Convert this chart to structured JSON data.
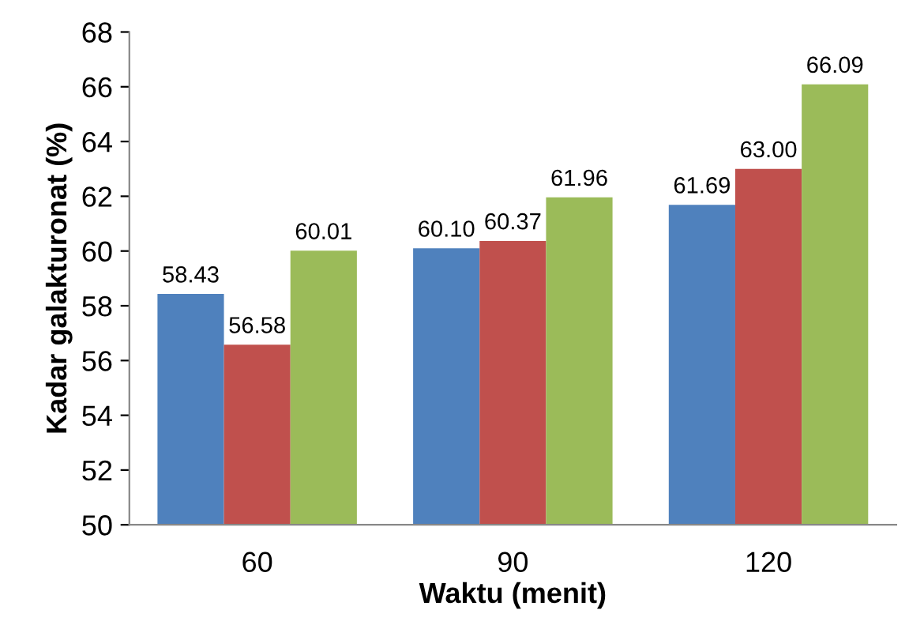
{
  "chart_data": {
    "type": "bar",
    "xlabel": "Waktu (menit)",
    "ylabel": "Kadar galakturonat (%)",
    "categories": [
      "60",
      "90",
      "120"
    ],
    "series": [
      {
        "color": "#4f81bd",
        "values": [
          58.43,
          60.1,
          61.69
        ],
        "value_labels": [
          "58.43",
          "60.10",
          "61.69"
        ]
      },
      {
        "color": "#c0504d",
        "values": [
          56.58,
          60.37,
          63.0
        ],
        "value_labels": [
          "56.58",
          "60.37",
          "63.00"
        ]
      },
      {
        "color": "#9bbb59",
        "values": [
          60.01,
          61.96,
          66.09
        ],
        "value_labels": [
          "60.01",
          "61.96",
          "66.09"
        ]
      }
    ],
    "ylim": [
      50,
      68
    ],
    "yticks": [
      50,
      52,
      54,
      56,
      58,
      60,
      62,
      64,
      66,
      68
    ],
    "grid": false,
    "legend": false
  }
}
